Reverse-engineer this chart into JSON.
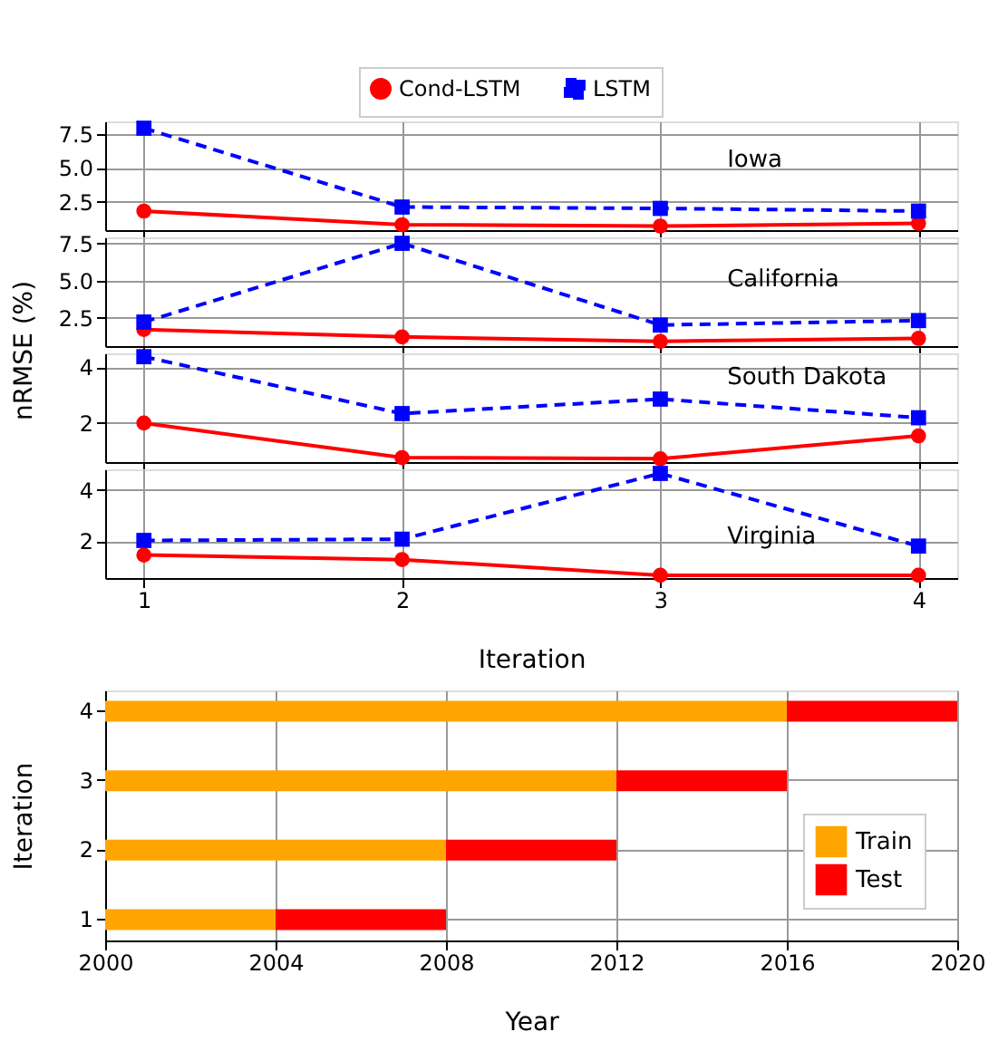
{
  "chart_data": [
    {
      "type": "line",
      "x": [
        1,
        2,
        3,
        4
      ],
      "xlim": [
        0.85,
        4.15
      ],
      "xticks": [
        1,
        2,
        3,
        4
      ],
      "ylim": [
        0.4,
        8.4
      ],
      "yticks": [
        {
          "value": 2.5,
          "label": "2.5"
        },
        {
          "value": 5,
          "label": "5.0"
        },
        {
          "value": 7.5,
          "label": "7.5"
        }
      ],
      "tick_labels": "y",
      "grid": true,
      "legend": "top",
      "annotations": [
        "Iowa"
      ],
      "series": [
        {
          "name": "Cond-LSTM",
          "color": "#ff0000",
          "marker": "circle",
          "line_style": "solid",
          "values": [
            1.8,
            0.8,
            0.7,
            0.9
          ]
        },
        {
          "name": "LSTM",
          "color": "#0000ff",
          "marker": "square",
          "line_style": "dashed",
          "values": [
            7.9,
            2.1,
            2.0,
            1.8
          ]
        }
      ]
    },
    {
      "type": "line",
      "x": [
        1,
        2,
        3,
        4
      ],
      "xlim": [
        0.85,
        4.15
      ],
      "xticks": [
        1,
        2,
        3,
        4
      ],
      "ylim": [
        0.58,
        7.9
      ],
      "yticks": [
        {
          "value": 2.5,
          "label": "2.5"
        },
        {
          "value": 5,
          "label": "5.0"
        },
        {
          "value": 7.5,
          "label": "7.5"
        }
      ],
      "tick_labels": "y",
      "grid": true,
      "ylabel": "nRMSE (%)",
      "annotations": [
        "California"
      ],
      "series": [
        {
          "color": "#ff0000",
          "marker": "circle",
          "line_style": "solid",
          "values": [
            1.7,
            1.2,
            0.9,
            1.1
          ]
        },
        {
          "color": "#0000ff",
          "marker": "square",
          "line_style": "dashed",
          "values": [
            2.2,
            7.5,
            2.0,
            2.3
          ]
        }
      ]
    },
    {
      "type": "line",
      "x": [
        1,
        2,
        3,
        4
      ],
      "xlim": [
        0.85,
        4.15
      ],
      "xticks": [
        1,
        2,
        3,
        4
      ],
      "ylim": [
        0.6,
        4.5
      ],
      "yticks": [
        2,
        4
      ],
      "tick_labels": "y",
      "grid": true,
      "annotations": [
        "South Dakota"
      ],
      "series": [
        {
          "color": "#ff0000",
          "marker": "circle",
          "line_style": "solid",
          "values": [
            2.0,
            0.76,
            0.72,
            1.54
          ]
        },
        {
          "color": "#0000ff",
          "marker": "square",
          "line_style": "dashed",
          "values": [
            4.38,
            2.34,
            2.86,
            2.19
          ]
        }
      ]
    },
    {
      "type": "line",
      "x": [
        1,
        2,
        3,
        4
      ],
      "xlim": [
        0.85,
        4.15
      ],
      "xticks": [
        1,
        2,
        3,
        4
      ],
      "ylim": [
        0.55,
        4.8
      ],
      "yticks": [
        2,
        4
      ],
      "grid": true,
      "xlabel": "Iteration",
      "annotations": [
        "Virginia"
      ],
      "series": [
        {
          "color": "#ff0000",
          "marker": "circle",
          "line_style": "solid",
          "values": [
            1.45,
            1.27,
            0.66,
            0.66
          ]
        },
        {
          "color": "#0000ff",
          "marker": "square",
          "line_style": "dashed",
          "values": [
            2.02,
            2.07,
            4.64,
            1.8
          ]
        }
      ]
    },
    {
      "type": "bar",
      "orientation": "horizontal",
      "categories": [
        "4",
        "3",
        "2",
        "1"
      ],
      "xlim": [
        2000,
        2020
      ],
      "xticks": [
        2000,
        2004,
        2008,
        2012,
        2016,
        2020
      ],
      "xlabel": "Year",
      "ylabel": "Iteration",
      "grid": true,
      "legend": "bottom right",
      "series": [
        {
          "name": "Train",
          "color": "#ffa500",
          "base": [
            2000,
            2000,
            2000,
            2000
          ],
          "values": [
            16,
            12,
            8,
            4
          ]
        },
        {
          "name": "Test",
          "color": "#ff0000",
          "base": [
            2016,
            2012,
            2008,
            2004
          ],
          "values": [
            4,
            4,
            4,
            4
          ]
        }
      ]
    }
  ]
}
